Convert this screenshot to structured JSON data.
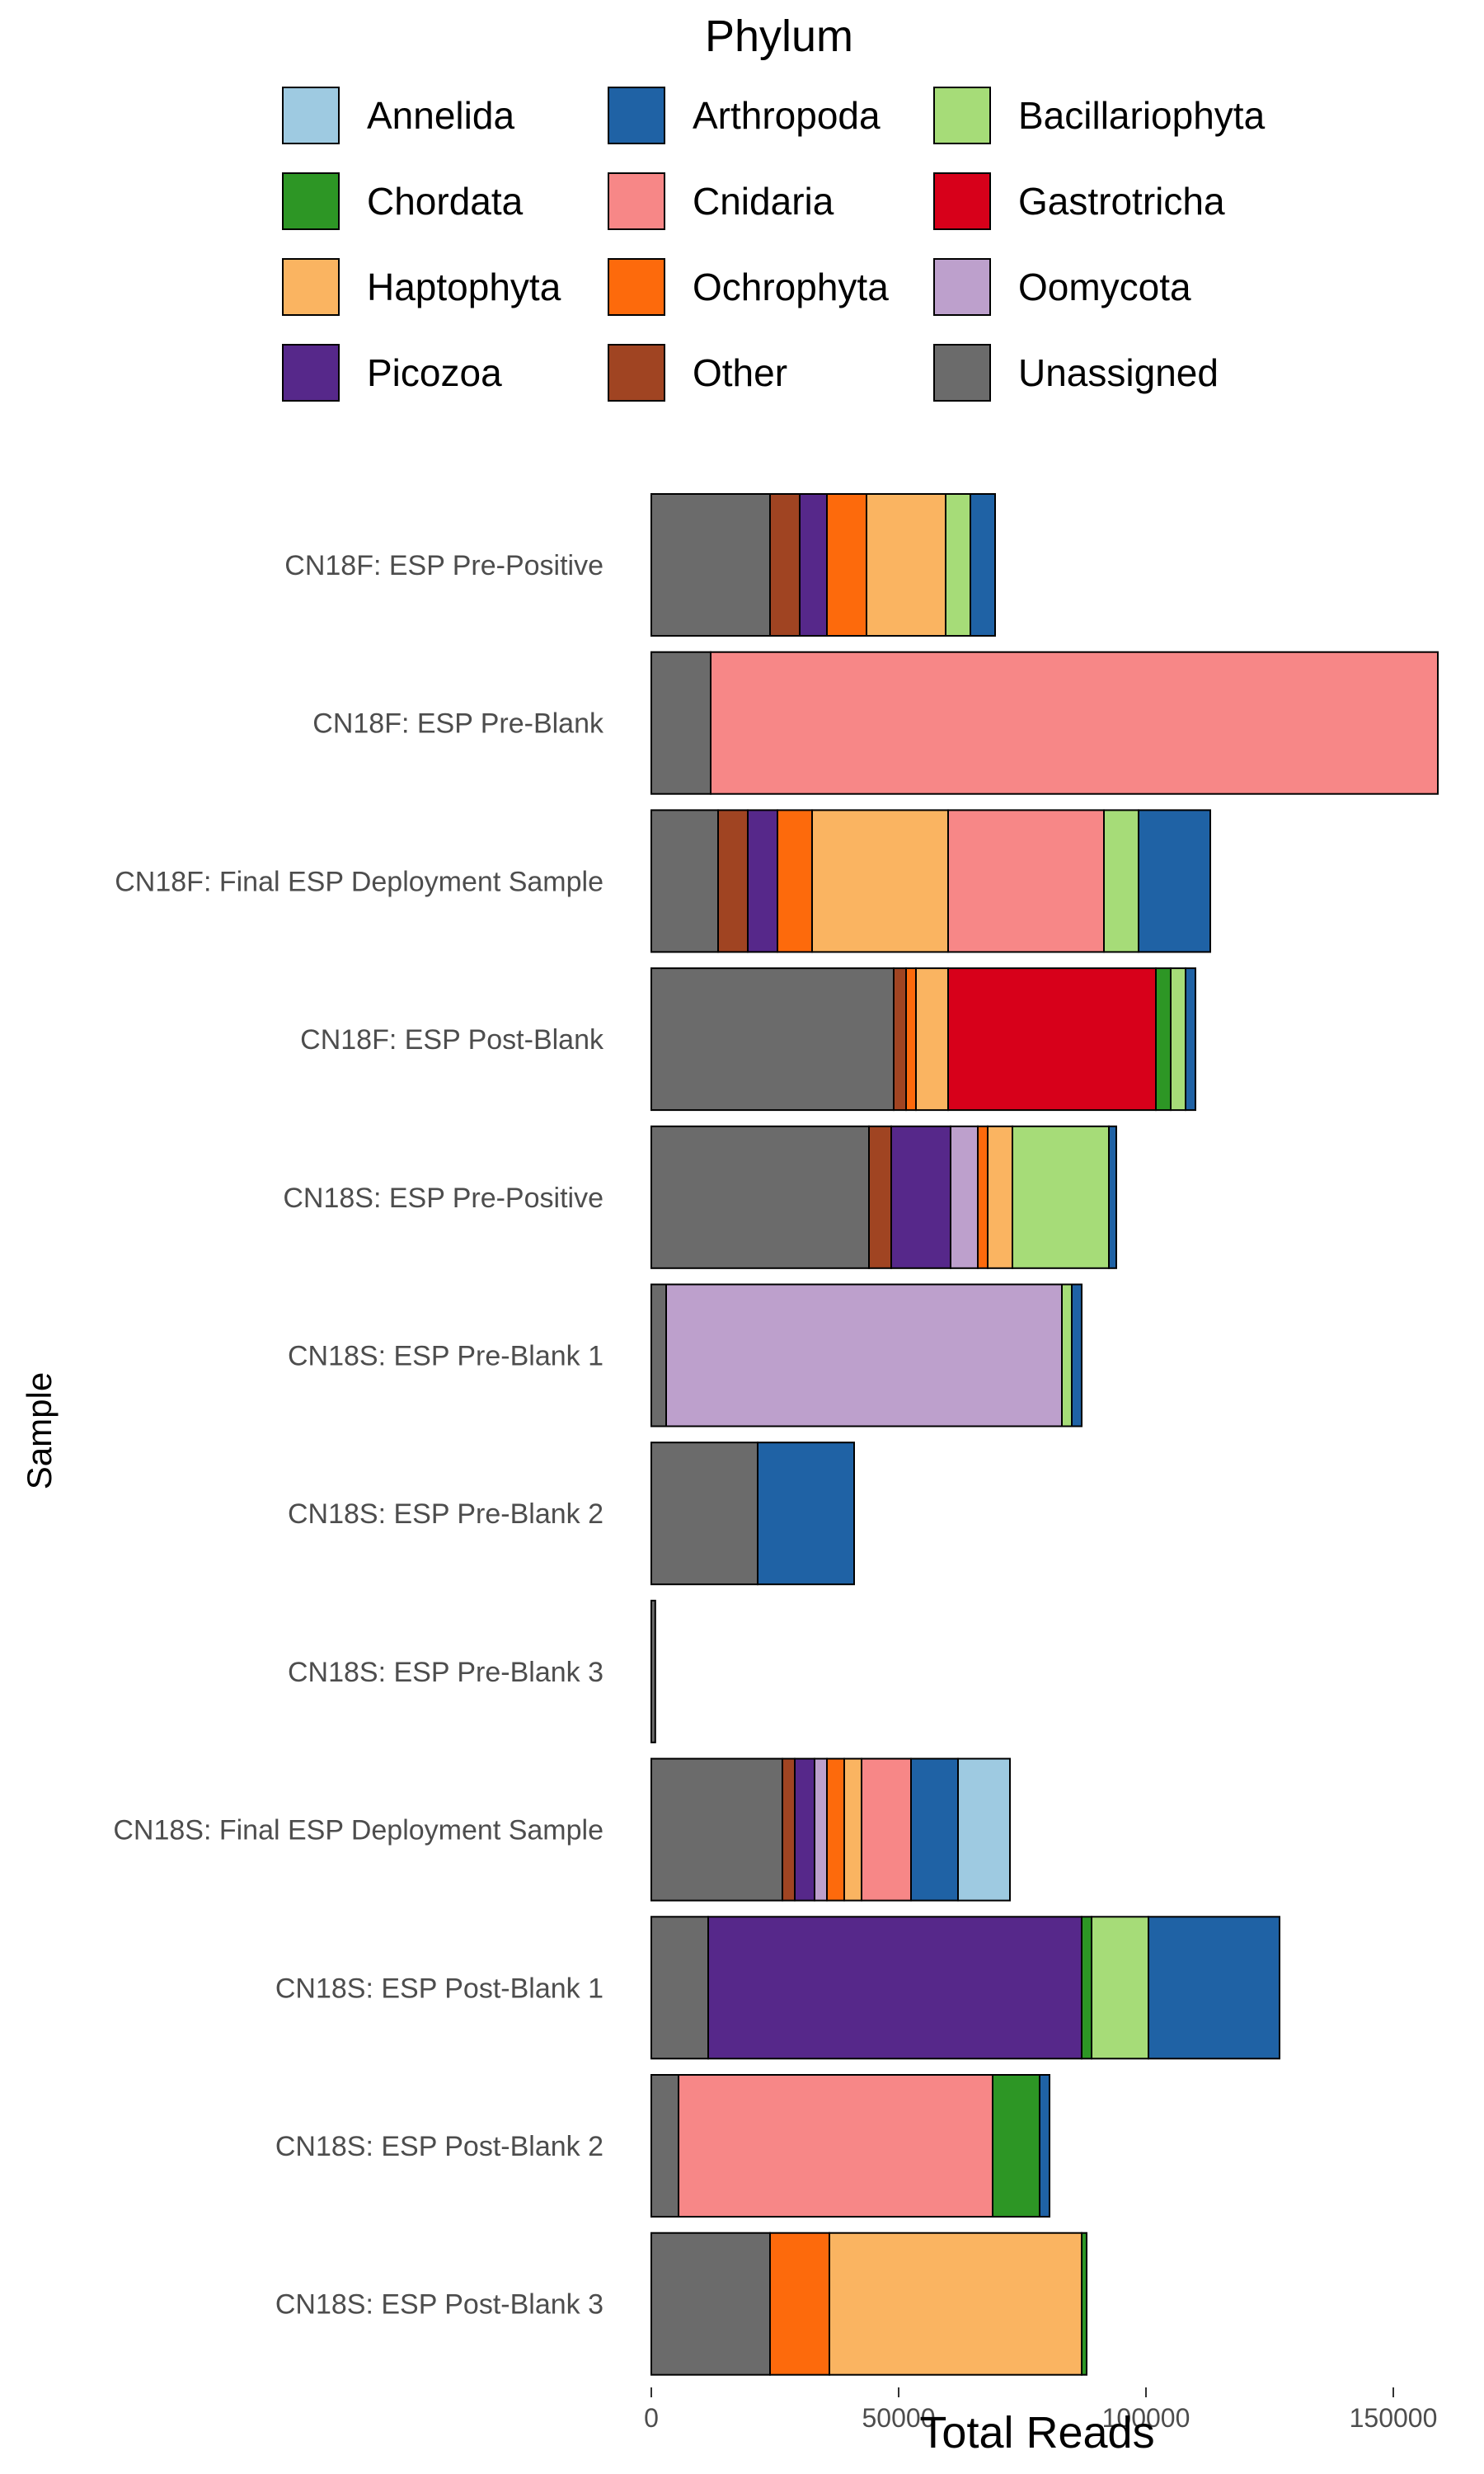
{
  "chart_data": {
    "type": "bar",
    "orientation": "horizontal",
    "stacked": true,
    "xlabel": "Total Reads",
    "ylabel": "Sample",
    "xlim": [
      0,
      160000
    ],
    "xticks": [
      0,
      50000,
      100000,
      150000
    ],
    "xtick_labels": [
      "0",
      "50000",
      "100000",
      "150000"
    ],
    "grid": false,
    "legend": {
      "title": "Phylum",
      "position": "top",
      "entries": [
        {
          "name": "Annelida",
          "color": "#9ecae1"
        },
        {
          "name": "Arthropoda",
          "color": "#1f62a5"
        },
        {
          "name": "Bacillariophyta",
          "color": "#a6dc78"
        },
        {
          "name": "Chordata",
          "color": "#2d9625"
        },
        {
          "name": "Cnidaria",
          "color": "#f78787"
        },
        {
          "name": "Gastrotricha",
          "color": "#d7001a"
        },
        {
          "name": "Haptophyta",
          "color": "#fab461"
        },
        {
          "name": "Ochrophyta",
          "color": "#fd6a0c"
        },
        {
          "name": "Oomycota",
          "color": "#bda0cc"
        },
        {
          "name": "Picozoa",
          "color": "#56288a"
        },
        {
          "name": "Other",
          "color": "#a04422"
        },
        {
          "name": "Unassigned",
          "color": "#6b6b6b"
        }
      ]
    },
    "stack_order": [
      "Unassigned",
      "Other",
      "Picozoa",
      "Oomycota",
      "Ochrophyta",
      "Haptophyta",
      "Gastrotricha",
      "Cnidaria",
      "Chordata",
      "Bacillariophyta",
      "Arthropoda",
      "Annelida"
    ],
    "categories": [
      "CN18F: ESP Pre-Positive",
      "CN18F: ESP Pre-Blank",
      "CN18F: Final ESP Deployment Sample",
      "CN18F: ESP Post-Blank",
      "CN18S: ESP Pre-Positive",
      "CN18S: ESP Pre-Blank 1",
      "CN18S: ESP Pre-Blank 2",
      "CN18S: ESP Pre-Blank 3",
      "CN18S: Final ESP Deployment Sample",
      "CN18S: ESP Post-Blank 1",
      "CN18S: ESP Post-Blank 2",
      "CN18S: ESP Post-Blank 3"
    ],
    "series": [
      {
        "name": "Unassigned",
        "values": [
          24000,
          12000,
          13500,
          49000,
          44000,
          3000,
          21500,
          800,
          26500,
          11500,
          5500,
          24000
        ]
      },
      {
        "name": "Other",
        "values": [
          6000,
          0,
          6000,
          2500,
          4500,
          0,
          0,
          0,
          2500,
          0,
          0,
          0
        ]
      },
      {
        "name": "Picozoa",
        "values": [
          5500,
          0,
          6000,
          0,
          12000,
          0,
          0,
          0,
          4000,
          75500,
          0,
          0
        ]
      },
      {
        "name": "Oomycota",
        "values": [
          0,
          0,
          0,
          0,
          5500,
          80000,
          0,
          0,
          2500,
          0,
          0,
          0
        ]
      },
      {
        "name": "Ochrophyta",
        "values": [
          8000,
          0,
          7000,
          2000,
          2000,
          0,
          0,
          0,
          3500,
          0,
          0,
          12000
        ]
      },
      {
        "name": "Haptophyta",
        "values": [
          16000,
          0,
          27500,
          6500,
          5000,
          0,
          0,
          0,
          3500,
          0,
          0,
          51000
        ]
      },
      {
        "name": "Gastrotricha",
        "values": [
          0,
          0,
          0,
          42000,
          0,
          0,
          0,
          0,
          0,
          0,
          0,
          0
        ]
      },
      {
        "name": "Cnidaria",
        "values": [
          0,
          147000,
          31500,
          0,
          0,
          0,
          0,
          0,
          10000,
          0,
          63500,
          0
        ]
      },
      {
        "name": "Chordata",
        "values": [
          0,
          0,
          0,
          3000,
          0,
          0,
          0,
          0,
          0,
          2000,
          9500,
          1000
        ]
      },
      {
        "name": "Bacillariophyta",
        "values": [
          5000,
          0,
          7000,
          3000,
          19500,
          2000,
          0,
          0,
          0,
          11500,
          0,
          0
        ]
      },
      {
        "name": "Arthropoda",
        "values": [
          5000,
          0,
          14500,
          2000,
          1500,
          2000,
          19500,
          0,
          9500,
          26500,
          2000,
          0
        ]
      },
      {
        "name": "Annelida",
        "values": [
          0,
          0,
          0,
          0,
          0,
          0,
          0,
          0,
          10500,
          0,
          0,
          0
        ]
      }
    ]
  }
}
